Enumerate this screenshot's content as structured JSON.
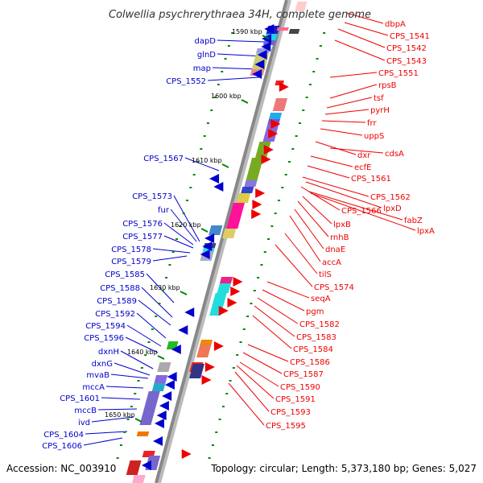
{
  "title": "Colwellia psychrerythraea 34H, complete genome",
  "footer": {
    "accession": "Accession: NC_003910",
    "summary": "Topology: circular; Length: 5,373,180 bp; Genes: 5,027"
  },
  "colors": {
    "left_strand": "#0000cc",
    "right_strand": "#ee0000",
    "axis": "#888888",
    "tick": "#008800"
  },
  "kbp_labels": [
    "1590 kbp",
    "1600 kbp",
    "1610 kbp",
    "1620 kbp",
    "1630 kbp",
    "1640 kbp",
    "1650 kbp"
  ],
  "left_genes": [
    "dapD",
    "glnD",
    "map",
    "CPS_1552",
    "CPS_1567",
    "CPS_1573",
    "fur",
    "CPS_1576",
    "CPS_1577",
    "CPS_1578",
    "CPS_1579",
    "CPS_1585",
    "CPS_1588",
    "CPS_1589",
    "CPS_1592",
    "CPS_1594",
    "CPS_1596",
    "dxnH",
    "dxnG",
    "mvaB",
    "mccA",
    "CPS_1601",
    "mccB",
    "ivd",
    "CPS_1604",
    "CPS_1606"
  ],
  "right_genes": [
    "dbpA",
    "CPS_1541",
    "CPS_1542",
    "CPS_1543",
    "CPS_1551",
    "rpsB",
    "tsf",
    "pyrH",
    "frr",
    "uppS",
    "dxr",
    "cdsA",
    "ecfE",
    "CPS_1561",
    "CPS_1562",
    "CPS_1566",
    "lpxD",
    "fabZ",
    "lpxA",
    "lpxB",
    "rnhB",
    "dnaE",
    "accA",
    "tilS",
    "CPS_1574",
    "seqA",
    "pgm",
    "CPS_1582",
    "CPS_1583",
    "CPS_1584",
    "CPS_1586",
    "CPS_1587",
    "CPS_1590",
    "CPS_1591",
    "CPS_1593",
    "CPS_1595"
  ]
}
